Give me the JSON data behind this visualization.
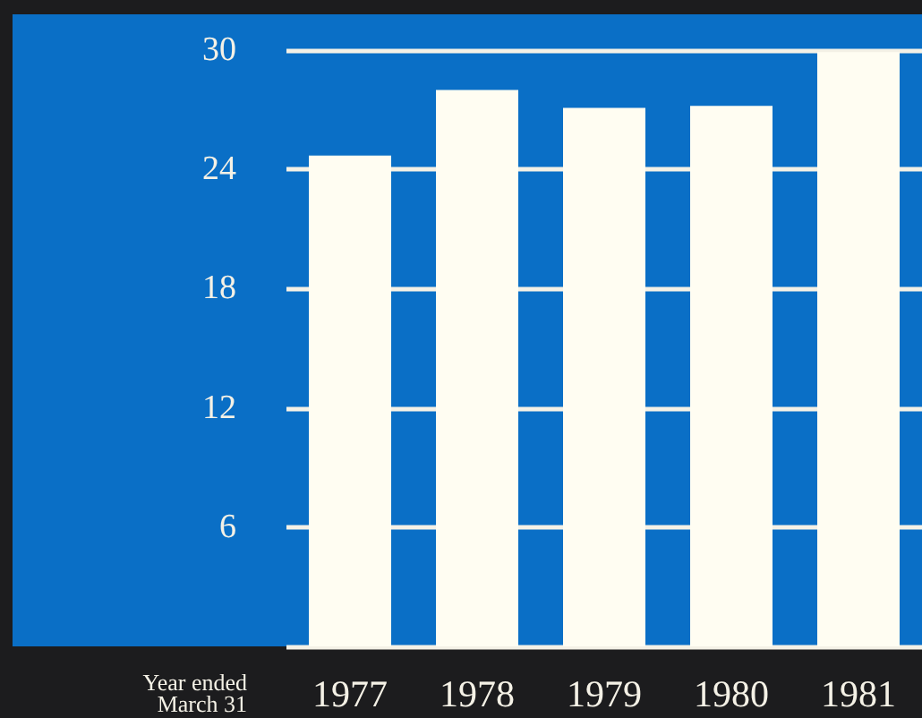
{
  "chart_data": {
    "type": "bar",
    "xlabel": "Year ended\nMarch 31",
    "categories": [
      "1977",
      "1978",
      "1979",
      "1980",
      "1981"
    ],
    "values": [
      24.7,
      28.0,
      27.1,
      27.2,
      29.9
    ],
    "color": "#fffdf2",
    "ylim": [
      0,
      30
    ],
    "yticks": [
      6,
      12,
      18,
      24,
      30
    ],
    "grid": "y"
  }
}
